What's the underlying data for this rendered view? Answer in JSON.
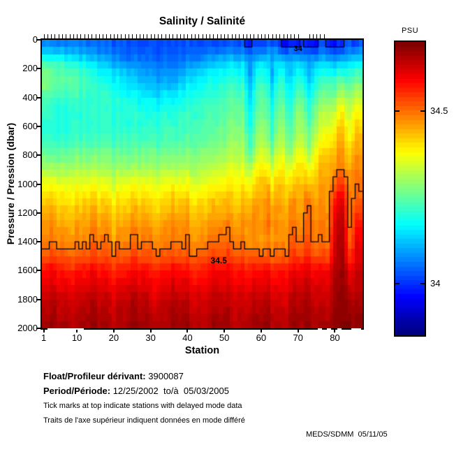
{
  "title": "Salinity / Salinité",
  "axes": {
    "xlabel": "Station",
    "ylabel": "Pressure / Pression (dbar)",
    "x_ticks": [
      1,
      10,
      20,
      30,
      40,
      50,
      60,
      70,
      80
    ],
    "y_ticks": [
      0,
      200,
      400,
      600,
      800,
      1000,
      1200,
      1400,
      1600,
      1800,
      2000
    ],
    "x_range": [
      1,
      87
    ],
    "y_range": [
      0,
      2000
    ]
  },
  "colorbar": {
    "label": "PSU",
    "ticks": [
      {
        "label": "34.5",
        "value": 34.5
      },
      {
        "label": "34",
        "value": 34.0
      }
    ]
  },
  "footer": {
    "float_label": "Float/Profileur dérivant:",
    "float_value": " 3900087",
    "period_label": "Period/Période:",
    "period_value": " 12/25/2002  to/à  05/03/2005",
    "note_en": "Tick marks at top indicate stations with delayed mode data",
    "note_fr": "Traits de l'axe supérieur indiquent données en mode différé",
    "credit": "MEDS/SDMM  05/11/05"
  },
  "chart_data": {
    "type": "heatmap",
    "title": "Salinity / Salinité",
    "xlabel": "Station",
    "ylabel": "Pressure / Pression (dbar)",
    "x_range": [
      1,
      87
    ],
    "y_range": [
      0,
      2000
    ],
    "y_axis_reversed": true,
    "grid": false,
    "colormap": "jet",
    "colorbar_label": "PSU",
    "colorbar_range": [
      33.85,
      34.7
    ],
    "colorbar_ticks": [
      34.0,
      34.5
    ],
    "stations": [
      1,
      6,
      12,
      18,
      24,
      30,
      36,
      42,
      48,
      54,
      58,
      62,
      66,
      70,
      74,
      78,
      80,
      82,
      84,
      86
    ],
    "depths_dbar": [
      0,
      50,
      100,
      150,
      200,
      300,
      400,
      500,
      600,
      700,
      800,
      900,
      1000,
      1100,
      1200,
      1300,
      1400,
      1500,
      1600,
      1800,
      2000
    ],
    "salinity_psu": [
      [
        34.06,
        34.09,
        34.16,
        34.22,
        34.26,
        34.28,
        34.24,
        34.21,
        34.2,
        34.22,
        34.26,
        34.31,
        34.37,
        34.41,
        34.45,
        34.47,
        34.48,
        34.52,
        34.58,
        34.64,
        34.67
      ],
      [
        34.05,
        34.08,
        34.14,
        34.2,
        34.24,
        34.26,
        34.22,
        34.2,
        34.2,
        34.22,
        34.26,
        34.31,
        34.37,
        34.41,
        34.44,
        34.47,
        34.49,
        34.53,
        34.58,
        34.64,
        34.67
      ],
      [
        34.04,
        34.06,
        34.1,
        34.15,
        34.2,
        34.22,
        34.21,
        34.2,
        34.2,
        34.22,
        34.26,
        34.31,
        34.36,
        34.4,
        34.44,
        34.46,
        34.48,
        34.52,
        34.58,
        34.64,
        34.67
      ],
      [
        34.03,
        34.04,
        34.06,
        34.1,
        34.14,
        34.18,
        34.2,
        34.2,
        34.2,
        34.22,
        34.26,
        34.3,
        34.36,
        34.4,
        34.44,
        34.46,
        34.49,
        34.53,
        34.58,
        34.64,
        34.67
      ],
      [
        34.02,
        34.02,
        34.04,
        34.06,
        34.1,
        34.14,
        34.18,
        34.2,
        34.2,
        34.22,
        34.26,
        34.3,
        34.36,
        34.4,
        34.43,
        34.46,
        34.48,
        34.52,
        34.58,
        34.64,
        34.67
      ],
      [
        34.01,
        34.02,
        34.03,
        34.05,
        34.07,
        34.1,
        34.15,
        34.18,
        34.2,
        34.22,
        34.26,
        34.31,
        34.36,
        34.4,
        34.44,
        34.47,
        34.49,
        34.53,
        34.58,
        34.64,
        34.67
      ],
      [
        34.01,
        34.02,
        34.03,
        34.04,
        34.06,
        34.1,
        34.16,
        34.19,
        34.21,
        34.23,
        34.27,
        34.31,
        34.37,
        34.41,
        34.44,
        34.47,
        34.48,
        34.52,
        34.58,
        34.64,
        34.67
      ],
      [
        34.02,
        34.03,
        34.05,
        34.08,
        34.12,
        34.17,
        34.2,
        34.22,
        34.23,
        34.25,
        34.28,
        34.32,
        34.37,
        34.41,
        34.45,
        34.47,
        34.49,
        34.53,
        34.58,
        34.64,
        34.67
      ],
      [
        34.01,
        34.04,
        34.08,
        34.12,
        34.16,
        34.2,
        34.22,
        34.24,
        34.25,
        34.27,
        34.3,
        34.34,
        34.38,
        34.42,
        34.45,
        34.48,
        34.5,
        34.54,
        34.59,
        34.64,
        34.67
      ],
      [
        34.01,
        34.04,
        34.08,
        34.13,
        34.17,
        34.21,
        34.24,
        34.26,
        34.28,
        34.3,
        34.33,
        34.36,
        34.4,
        34.43,
        34.46,
        34.48,
        34.5,
        34.54,
        34.59,
        34.64,
        34.67
      ],
      [
        34.01,
        34.04,
        34.08,
        34.13,
        34.18,
        34.22,
        34.25,
        34.27,
        34.29,
        34.32,
        34.36,
        34.4,
        34.43,
        34.45,
        34.47,
        34.48,
        34.47,
        34.52,
        34.58,
        34.64,
        34.67
      ],
      [
        34.01,
        34.04,
        34.09,
        34.14,
        34.19,
        34.23,
        34.26,
        34.28,
        34.3,
        34.33,
        34.37,
        34.41,
        34.44,
        34.46,
        34.47,
        34.48,
        34.46,
        34.51,
        34.58,
        34.64,
        34.67
      ],
      [
        34.0,
        34.03,
        34.08,
        34.14,
        34.19,
        34.23,
        34.26,
        34.29,
        34.31,
        34.34,
        34.38,
        34.42,
        34.45,
        34.46,
        34.48,
        34.49,
        34.5,
        34.53,
        34.59,
        34.64,
        34.67
      ],
      [
        34.0,
        34.03,
        34.07,
        34.13,
        34.18,
        34.23,
        34.27,
        34.3,
        34.32,
        34.35,
        34.39,
        34.42,
        34.44,
        34.46,
        34.47,
        34.48,
        34.5,
        34.54,
        34.6,
        34.65,
        34.67
      ],
      [
        34.0,
        34.03,
        34.06,
        34.12,
        34.17,
        34.22,
        34.26,
        34.3,
        34.33,
        34.36,
        34.4,
        34.44,
        34.46,
        34.48,
        34.49,
        34.5,
        34.51,
        34.54,
        34.6,
        34.65,
        34.67
      ],
      [
        34.01,
        34.03,
        34.06,
        34.11,
        34.16,
        34.22,
        34.27,
        34.31,
        34.34,
        34.38,
        34.42,
        34.44,
        34.46,
        34.47,
        34.48,
        34.49,
        34.5,
        34.54,
        34.61,
        34.65,
        34.68
      ],
      [
        34.0,
        34.03,
        34.05,
        34.1,
        34.16,
        34.23,
        34.29,
        34.34,
        34.38,
        34.42,
        34.45,
        34.47,
        34.52,
        34.58,
        34.6,
        34.62,
        34.63,
        34.64,
        34.65,
        34.67,
        34.69
      ],
      [
        34.01,
        34.03,
        34.06,
        34.11,
        34.17,
        34.25,
        34.32,
        34.38,
        34.42,
        34.45,
        34.46,
        34.49,
        34.54,
        34.6,
        34.63,
        34.64,
        34.65,
        34.66,
        34.67,
        34.68,
        34.69
      ],
      [
        34.02,
        34.04,
        34.07,
        34.12,
        34.17,
        34.23,
        34.28,
        34.32,
        34.35,
        34.38,
        34.41,
        34.44,
        34.46,
        34.47,
        34.47,
        34.48,
        34.49,
        34.53,
        34.59,
        34.65,
        34.68
      ],
      [
        34.03,
        34.05,
        34.09,
        34.14,
        34.19,
        34.26,
        34.32,
        34.37,
        34.41,
        34.44,
        34.46,
        34.48,
        34.49,
        34.51,
        34.54,
        34.58,
        34.6,
        34.62,
        34.64,
        34.66,
        34.69
      ]
    ],
    "contour_levels": [
      34.0,
      34.5
    ],
    "contour_annotations": [
      {
        "text": "34.5",
        "station": 48.5,
        "depth": 1530
      },
      {
        "text": "34",
        "station": 70,
        "depth": 62
      }
    ],
    "surface_fresh_blob_station_ranges": [
      [
        56,
        57
      ],
      [
        66,
        70
      ],
      [
        72,
        75
      ],
      [
        78,
        82
      ],
      [
        85,
        86
      ]
    ],
    "fresh_streak_stations": [
      57,
      63,
      68,
      73
    ],
    "delayed_mode_tick_station_ranges": [
      [
        1,
        70
      ],
      [
        73,
        77
      ]
    ]
  }
}
